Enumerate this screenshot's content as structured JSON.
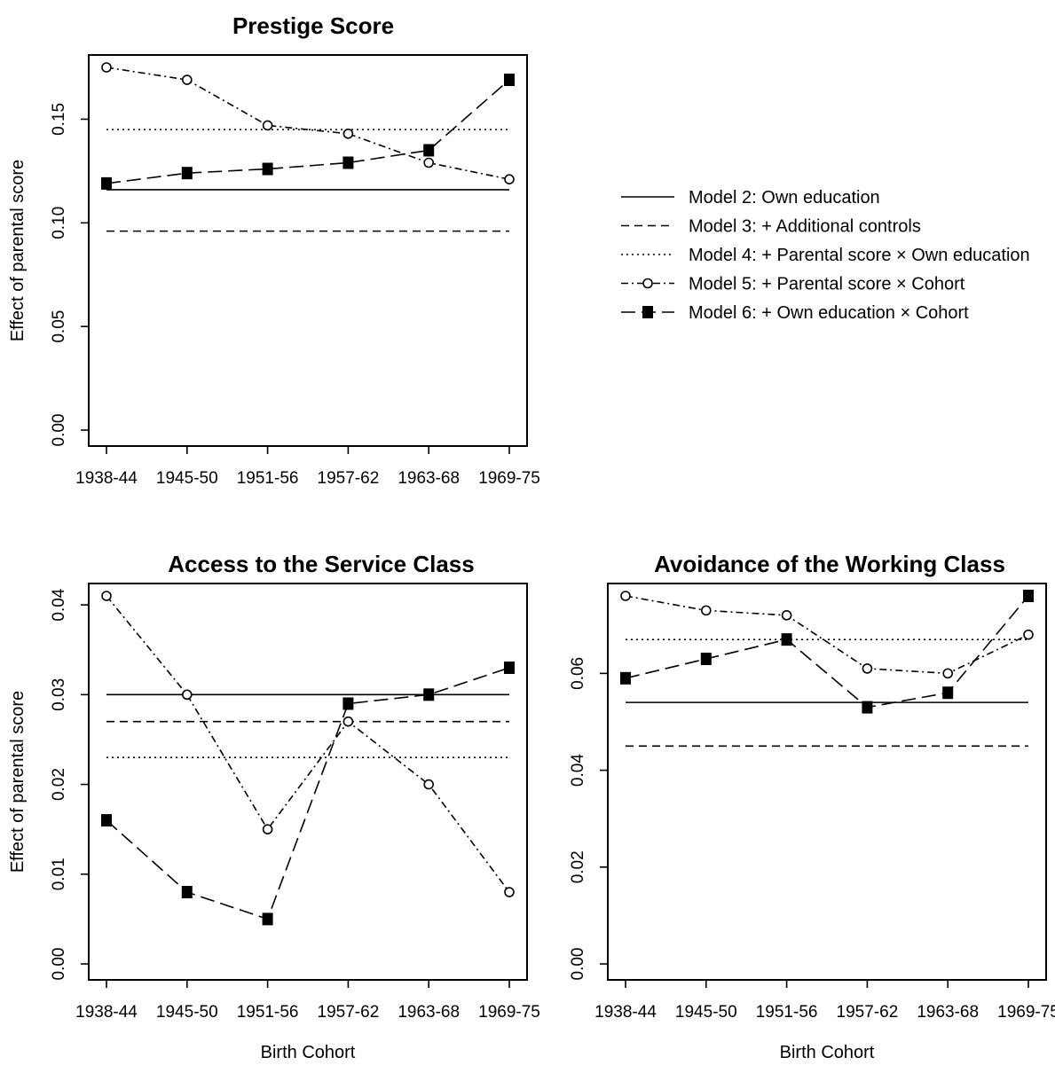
{
  "legend": {
    "entries": [
      {
        "series": "model2",
        "label": "Model 2: Own education"
      },
      {
        "series": "model3",
        "label": "Model 3: + Additional controls"
      },
      {
        "series": "model4",
        "label": "Model 4: + Parental score × Own education"
      },
      {
        "series": "model5",
        "label": "Model 5: + Parental score × Cohort"
      },
      {
        "series": "model6",
        "label": "Model 6: + Own education × Cohort"
      }
    ]
  },
  "chart_data": [
    {
      "type": "line",
      "title": "Prestige Score",
      "xlabel": "",
      "ylabel": "Effect of parental score",
      "categories": [
        "1938-44",
        "1945-50",
        "1951-56",
        "1957-62",
        "1963-68",
        "1969-75"
      ],
      "ylim": [
        0,
        0.175
      ],
      "yticks": [
        "0.00",
        "0.05",
        "0.10",
        "0.15"
      ],
      "grid": false,
      "series": [
        {
          "id": "model2",
          "values": [
            0.116,
            0.116,
            0.116,
            0.116,
            0.116,
            0.116
          ]
        },
        {
          "id": "model3",
          "values": [
            0.096,
            0.096,
            0.096,
            0.096,
            0.096,
            0.096
          ]
        },
        {
          "id": "model4",
          "values": [
            0.145,
            0.145,
            0.145,
            0.145,
            0.145,
            0.145
          ]
        },
        {
          "id": "model5",
          "values": [
            0.175,
            0.169,
            0.147,
            0.143,
            0.129,
            0.121
          ]
        },
        {
          "id": "model6",
          "values": [
            0.119,
            0.124,
            0.126,
            0.129,
            0.135,
            0.169
          ]
        }
      ]
    },
    {
      "type": "line",
      "title": "Access to the Service Class",
      "xlabel": "Birth Cohort",
      "ylabel": "Effect of parental score",
      "categories": [
        "1938-44",
        "1945-50",
        "1951-56",
        "1957-62",
        "1963-68",
        "1969-75"
      ],
      "ylim": [
        0,
        0.041
      ],
      "yticks": [
        "0.00",
        "0.01",
        "0.02",
        "0.03",
        "0.04"
      ],
      "grid": false,
      "series": [
        {
          "id": "model2",
          "values": [
            0.03,
            0.03,
            0.03,
            0.03,
            0.03,
            0.03
          ]
        },
        {
          "id": "model3",
          "values": [
            0.027,
            0.027,
            0.027,
            0.027,
            0.027,
            0.027
          ]
        },
        {
          "id": "model4",
          "values": [
            0.023,
            0.023,
            0.023,
            0.023,
            0.023,
            0.023
          ]
        },
        {
          "id": "model5",
          "values": [
            0.041,
            0.03,
            0.015,
            0.027,
            0.02,
            0.008
          ]
        },
        {
          "id": "model6",
          "values": [
            0.016,
            0.008,
            0.005,
            0.029,
            0.03,
            0.033
          ]
        }
      ]
    },
    {
      "type": "line",
      "title": "Avoidance of the Working Class",
      "xlabel": "Birth Cohort",
      "ylabel": "",
      "categories": [
        "1938-44",
        "1945-50",
        "1951-56",
        "1957-62",
        "1963-68",
        "1969-75"
      ],
      "ylim": [
        0,
        0.076
      ],
      "yticks": [
        "0.00",
        "0.02",
        "0.04",
        "0.06"
      ],
      "grid": false,
      "series": [
        {
          "id": "model2",
          "values": [
            0.054,
            0.054,
            0.054,
            0.054,
            0.054,
            0.054
          ]
        },
        {
          "id": "model3",
          "values": [
            0.045,
            0.045,
            0.045,
            0.045,
            0.045,
            0.045
          ]
        },
        {
          "id": "model4",
          "values": [
            0.067,
            0.067,
            0.067,
            0.067,
            0.067,
            0.067
          ]
        },
        {
          "id": "model5",
          "values": [
            0.076,
            0.073,
            0.072,
            0.061,
            0.06,
            0.068
          ]
        },
        {
          "id": "model6",
          "values": [
            0.059,
            0.063,
            0.067,
            0.053,
            0.056,
            0.076
          ]
        }
      ]
    }
  ]
}
